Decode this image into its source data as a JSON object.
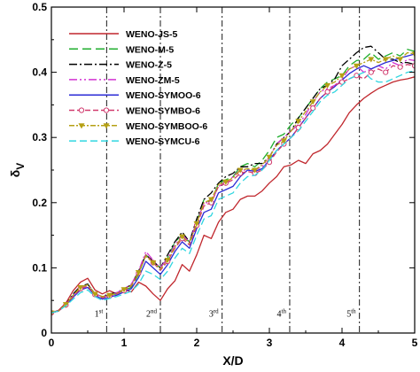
{
  "chart_data": {
    "type": "line",
    "xlabel": "X/D",
    "ylabel": "δ",
    "ylabel_sub": "V",
    "xlim": [
      0,
      5
    ],
    "ylim": [
      0,
      0.5
    ],
    "x_ticks": [
      0,
      1,
      2,
      3,
      4,
      5
    ],
    "y_ticks": [
      0,
      0.1,
      0.2,
      0.3,
      0.4,
      0.5
    ],
    "grid": false,
    "legend_position": "top-left",
    "vertical_markers": [
      {
        "x": 0.76,
        "num": "1",
        "sup": "st"
      },
      {
        "x": 1.5,
        "num": "2",
        "sup": "nd"
      },
      {
        "x": 2.35,
        "num": "3",
        "sup": "rd"
      },
      {
        "x": 3.28,
        "num": "4",
        "sup": "th"
      },
      {
        "x": 4.24,
        "num": "5",
        "sup": "th"
      }
    ],
    "x": [
      0,
      0.1,
      0.2,
      0.3,
      0.4,
      0.5,
      0.6,
      0.7,
      0.8,
      0.9,
      1.0,
      1.1,
      1.2,
      1.3,
      1.4,
      1.5,
      1.6,
      1.7,
      1.8,
      1.9,
      2.0,
      2.1,
      2.2,
      2.3,
      2.4,
      2.5,
      2.6,
      2.7,
      2.8,
      2.9,
      3.0,
      3.1,
      3.2,
      3.3,
      3.4,
      3.5,
      3.6,
      3.7,
      3.8,
      3.9,
      4.0,
      4.1,
      4.2,
      4.3,
      4.4,
      4.5,
      4.6,
      4.7,
      4.8,
      4.9,
      5.0
    ],
    "series": [
      {
        "name": "WENO-JS-5",
        "color": "#c0272d",
        "dash": "",
        "marker": "",
        "values": [
          0.031,
          0.035,
          0.046,
          0.065,
          0.078,
          0.084,
          0.066,
          0.06,
          0.065,
          0.06,
          0.067,
          0.063,
          0.078,
          0.072,
          0.06,
          0.05,
          0.068,
          0.08,
          0.105,
          0.095,
          0.12,
          0.15,
          0.145,
          0.17,
          0.185,
          0.19,
          0.205,
          0.21,
          0.21,
          0.218,
          0.23,
          0.24,
          0.255,
          0.258,
          0.265,
          0.26,
          0.275,
          0.28,
          0.29,
          0.305,
          0.32,
          0.338,
          0.35,
          0.36,
          0.368,
          0.375,
          0.38,
          0.385,
          0.388,
          0.39,
          0.393
        ]
      },
      {
        "name": "WENO-M-5",
        "color": "#1fae2e",
        "dash": "10,5",
        "marker": "",
        "values": [
          0.031,
          0.034,
          0.044,
          0.058,
          0.07,
          0.075,
          0.06,
          0.055,
          0.058,
          0.06,
          0.066,
          0.07,
          0.09,
          0.12,
          0.11,
          0.1,
          0.115,
          0.14,
          0.15,
          0.14,
          0.17,
          0.205,
          0.2,
          0.23,
          0.235,
          0.24,
          0.255,
          0.26,
          0.255,
          0.265,
          0.28,
          0.3,
          0.305,
          0.32,
          0.33,
          0.345,
          0.36,
          0.375,
          0.385,
          0.39,
          0.395,
          0.41,
          0.418,
          0.42,
          0.43,
          0.42,
          0.425,
          0.43,
          0.425,
          0.435,
          0.432
        ]
      },
      {
        "name": "WENO-Z-5",
        "color": "#000000",
        "dash": "9,3,2,3",
        "marker": "",
        "values": [
          0.031,
          0.034,
          0.044,
          0.06,
          0.072,
          0.075,
          0.06,
          0.056,
          0.06,
          0.062,
          0.068,
          0.074,
          0.095,
          0.12,
          0.11,
          0.1,
          0.12,
          0.14,
          0.155,
          0.14,
          0.175,
          0.205,
          0.215,
          0.23,
          0.24,
          0.245,
          0.255,
          0.255,
          0.26,
          0.26,
          0.27,
          0.29,
          0.3,
          0.31,
          0.33,
          0.345,
          0.36,
          0.375,
          0.38,
          0.39,
          0.41,
          0.42,
          0.43,
          0.438,
          0.44,
          0.43,
          0.42,
          0.42,
          0.415,
          0.415,
          0.412
        ]
      },
      {
        "name": "WENO-ZM-5",
        "color": "#d232d2",
        "dash": "9,3,2,3,2,3",
        "marker": "",
        "values": [
          0.031,
          0.034,
          0.044,
          0.058,
          0.07,
          0.074,
          0.06,
          0.056,
          0.058,
          0.062,
          0.068,
          0.075,
          0.095,
          0.125,
          0.112,
          0.1,
          0.115,
          0.135,
          0.15,
          0.14,
          0.17,
          0.2,
          0.2,
          0.225,
          0.23,
          0.24,
          0.25,
          0.25,
          0.25,
          0.255,
          0.27,
          0.29,
          0.3,
          0.31,
          0.32,
          0.335,
          0.355,
          0.37,
          0.375,
          0.38,
          0.39,
          0.405,
          0.41,
          0.4,
          0.405,
          0.41,
          0.405,
          0.415,
          0.41,
          0.42,
          0.418
        ]
      },
      {
        "name": "WENO-SYMOO-6",
        "color": "#2b2bd6",
        "dash": "",
        "marker": "",
        "values": [
          0.031,
          0.034,
          0.043,
          0.055,
          0.066,
          0.07,
          0.058,
          0.052,
          0.055,
          0.058,
          0.063,
          0.068,
          0.085,
          0.11,
          0.1,
          0.09,
          0.105,
          0.125,
          0.14,
          0.13,
          0.16,
          0.185,
          0.19,
          0.215,
          0.22,
          0.225,
          0.24,
          0.25,
          0.248,
          0.252,
          0.265,
          0.28,
          0.29,
          0.3,
          0.315,
          0.33,
          0.345,
          0.36,
          0.37,
          0.378,
          0.388,
          0.398,
          0.405,
          0.41,
          0.405,
          0.41,
          0.415,
          0.418,
          0.422,
          0.425,
          0.428
        ]
      },
      {
        "name": "WENO-SYMBO-6",
        "color": "#d13a6e",
        "dash": "6,3",
        "marker": "circle",
        "values": [
          0.031,
          0.034,
          0.043,
          0.056,
          0.068,
          0.072,
          0.059,
          0.054,
          0.057,
          0.06,
          0.065,
          0.072,
          0.092,
          0.12,
          0.108,
          0.096,
          0.11,
          0.13,
          0.145,
          0.135,
          0.165,
          0.195,
          0.2,
          0.225,
          0.23,
          0.235,
          0.245,
          0.248,
          0.245,
          0.25,
          0.262,
          0.278,
          0.29,
          0.3,
          0.315,
          0.33,
          0.345,
          0.36,
          0.37,
          0.38,
          0.385,
          0.39,
          0.395,
          0.39,
          0.4,
          0.405,
          0.4,
          0.41,
          0.408,
          0.412,
          0.41
        ]
      },
      {
        "name": "WENO-SYMBOO-6",
        "color": "#b5a014",
        "dash": "6,2,2,2",
        "marker": "triangle",
        "values": [
          0.031,
          0.034,
          0.044,
          0.058,
          0.07,
          0.074,
          0.06,
          0.056,
          0.058,
          0.061,
          0.067,
          0.073,
          0.093,
          0.118,
          0.108,
          0.098,
          0.112,
          0.132,
          0.148,
          0.138,
          0.168,
          0.2,
          0.205,
          0.228,
          0.232,
          0.238,
          0.25,
          0.252,
          0.25,
          0.258,
          0.27,
          0.288,
          0.295,
          0.31,
          0.325,
          0.34,
          0.355,
          0.37,
          0.38,
          0.385,
          0.395,
          0.405,
          0.41,
          0.415,
          0.42,
          0.415,
          0.42,
          0.425,
          0.42,
          0.43,
          0.428
        ]
      },
      {
        "name": "WENO-SYMCU-6",
        "color": "#30d6e0",
        "dash": "8,4",
        "marker": "",
        "values": [
          0.031,
          0.034,
          0.042,
          0.052,
          0.062,
          0.066,
          0.056,
          0.05,
          0.053,
          0.056,
          0.06,
          0.064,
          0.075,
          0.095,
          0.09,
          0.082,
          0.095,
          0.115,
          0.13,
          0.122,
          0.15,
          0.175,
          0.18,
          0.205,
          0.21,
          0.215,
          0.23,
          0.24,
          0.242,
          0.25,
          0.265,
          0.28,
          0.29,
          0.3,
          0.31,
          0.325,
          0.34,
          0.355,
          0.365,
          0.37,
          0.38,
          0.39,
          0.395,
          0.4,
          0.39,
          0.385,
          0.385,
          0.39,
          0.395,
          0.4,
          0.402
        ]
      }
    ]
  }
}
